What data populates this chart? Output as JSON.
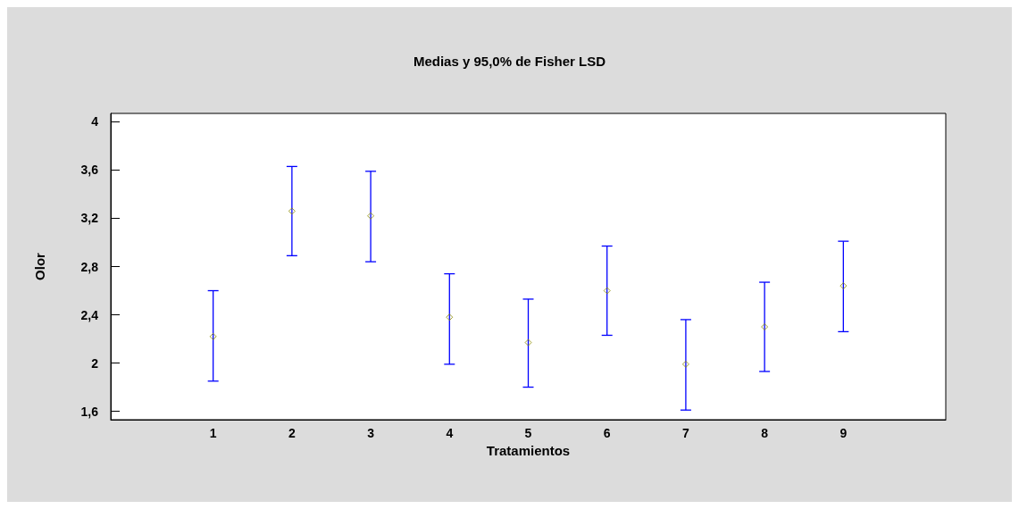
{
  "chart_data": {
    "type": "scatter",
    "title": "Medias y 95,0% de Fisher LSD",
    "xlabel": "Tratamientos",
    "ylabel": "Olor",
    "x": [
      1,
      2,
      3,
      4,
      5,
      6,
      7,
      8,
      9
    ],
    "series": [
      {
        "color": "#8b8b00",
        "values": [
          2.22,
          3.26,
          3.22,
          2.38,
          2.17,
          2.6,
          1.99,
          2.3,
          2.64
        ],
        "errors": [
          [
            1.85,
            2.6
          ],
          [
            2.89,
            3.63
          ],
          [
            2.84,
            3.59
          ],
          [
            1.99,
            2.74
          ],
          [
            1.8,
            2.53
          ],
          [
            2.23,
            2.97
          ],
          [
            1.61,
            2.36
          ],
          [
            1.93,
            2.67
          ],
          [
            2.26,
            3.01
          ]
        ]
      }
    ],
    "marker": "diamond",
    "xlim": [
      -0.3,
      10.3
    ],
    "xticks": [
      1,
      2,
      3,
      4,
      5,
      6,
      7,
      8,
      9
    ],
    "ylim": [
      1.53,
      4.07
    ],
    "yticks": [
      {
        "value": 1.6,
        "label": "1,6"
      },
      {
        "value": 2,
        "label": "2"
      },
      {
        "value": 2.4,
        "label": "2,4"
      },
      {
        "value": 2.8,
        "label": "2,8"
      },
      {
        "value": 3.2,
        "label": "3,2"
      },
      {
        "value": 3.6,
        "label": "3,6"
      },
      {
        "value": 4,
        "label": "4"
      }
    ],
    "grid": false
  }
}
